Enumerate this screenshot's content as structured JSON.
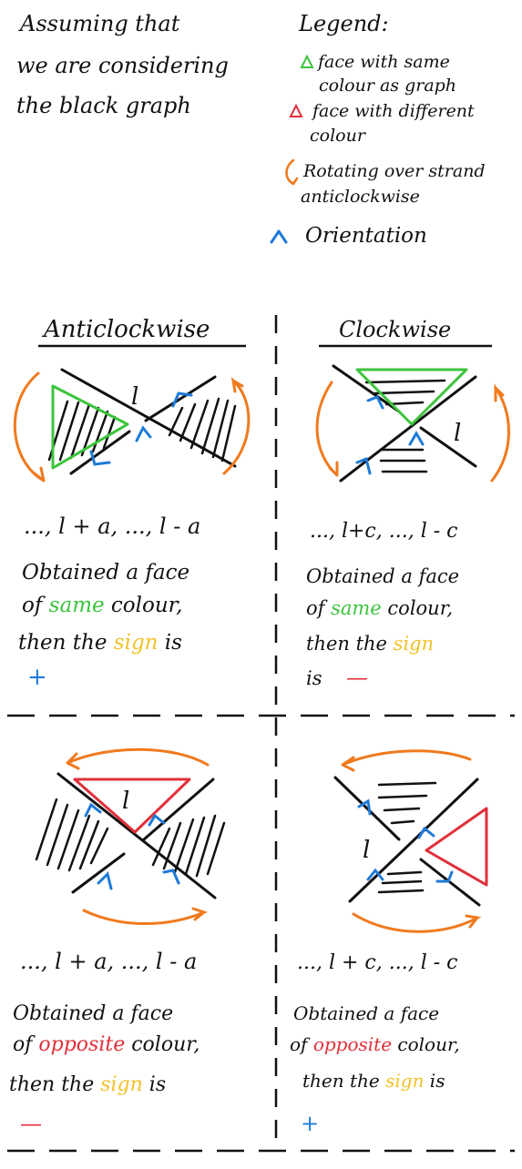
{
  "header": {
    "intro_lines": [
      "Assuming that",
      "we are considering",
      "the black graph"
    ],
    "legend_title": "Legend:",
    "legend_same_lines": [
      "face with same",
      "colour as graph"
    ],
    "legend_diff_lines": [
      "face with different",
      "colour"
    ],
    "legend_rotate_lines": [
      "Rotating over strand",
      "anticlockwise"
    ],
    "legend_orientation": "Orientation"
  },
  "columns": {
    "left_title": "Anticlockwise",
    "right_title": "Clockwise"
  },
  "panels": {
    "top_left": {
      "face_label": "l",
      "sequence": "..., l + a, ..., l - a",
      "line1": "Obtained a face",
      "line2_pre": "of ",
      "line2_key": "same",
      "line2_post": " colour,",
      "line3_pre": "then the ",
      "line3_key": "sign",
      "line3_post": " is",
      "sign": "+"
    },
    "top_right": {
      "face_label": "l",
      "sequence": "..., l+c, ..., l - c",
      "line1": "Obtained a face",
      "line2_pre": "of ",
      "line2_key": "same",
      "line2_post": " colour,",
      "line3_pre": "then the ",
      "line3_key": "sign",
      "line4": "is",
      "sign": "—"
    },
    "bottom_left": {
      "face_label": "l",
      "sequence": "..., l + a, ..., l - a",
      "line1": "Obtained a face",
      "line2_pre": "of ",
      "line2_key": "opposite",
      "line2_post": " colour,",
      "line3_pre": "then the ",
      "line3_key": "sign",
      "line3_post": " is",
      "sign": "—"
    },
    "bottom_right": {
      "face_label": "l",
      "sequence": "..., l + c, ..., l - c",
      "line1": "Obtained a face",
      "line2_pre": "of ",
      "line2_key": "opposite",
      "line2_post": " colour,",
      "line3_pre": "then the ",
      "line3_key": "sign",
      "line3_post": " is",
      "sign": "+"
    }
  },
  "colors": {
    "ink": "#111111",
    "same_face": "#3cc43c",
    "different_face": "#e0303a",
    "rotation": "#f07a1e",
    "orientation": "#1e7ad8",
    "sign_word": "#f2c22a",
    "plus_sign": "#1e7ad8",
    "minus_sign": "#e0303a"
  }
}
